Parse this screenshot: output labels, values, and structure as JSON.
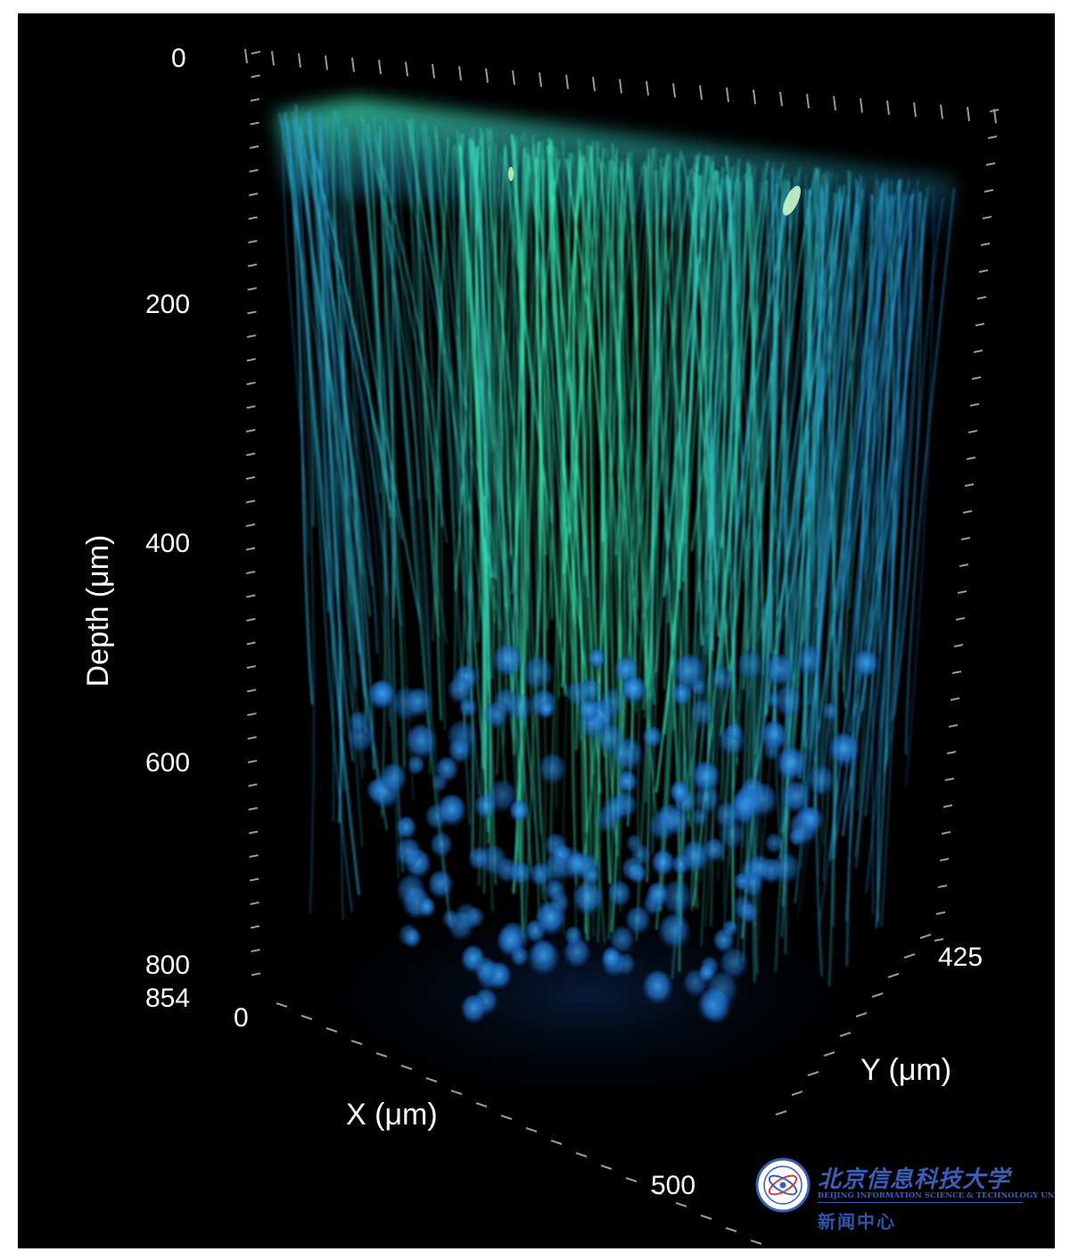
{
  "image": {
    "subject": "3D volume rendering of fluorescently labelled cortical neurons",
    "colors": {
      "background": "#000000",
      "dendrite_glow": "#3cf0b4",
      "soma_blue": "#1e7ad6"
    }
  },
  "axes": {
    "depth": {
      "title": "Depth (μm)",
      "ticks": [
        "0",
        "200",
        "400",
        "600",
        "800",
        "854"
      ]
    },
    "x": {
      "title": "X (μm)",
      "start": "0",
      "end": "500"
    },
    "y": {
      "title": "Y (μm)",
      "end": "425"
    }
  },
  "watermark": {
    "org_cn": "北京信息科技大学",
    "org_en": "BEIJING INFORMATION SCIENCE & TECHNOLOGY UNIVERSITY",
    "dept_cn": "新闻中心",
    "emblem": "university-seal-icon"
  }
}
